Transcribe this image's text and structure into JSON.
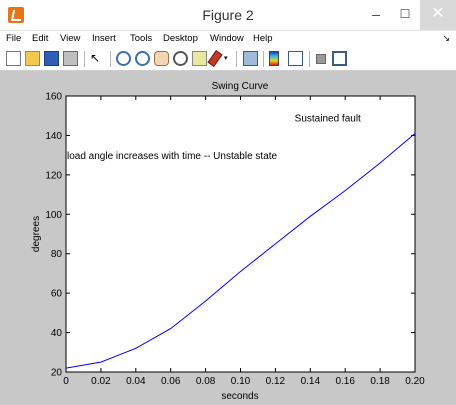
{
  "window": {
    "title": "Figure 2",
    "min_glyph": "–",
    "max_glyph": "☐",
    "close_glyph": "✕"
  },
  "menu": {
    "items": [
      "File",
      "Edit",
      "View",
      "Insert",
      "Tools",
      "Desktop",
      "Window",
      "Help"
    ],
    "pin_glyph": "↘"
  },
  "toolbar": {
    "icons": [
      "new-figure-icon",
      "open-file-icon",
      "save-icon",
      "print-icon",
      "edit-plot-arrow-icon",
      "zoom-in-icon",
      "zoom-out-icon",
      "pan-hand-icon",
      "rotate-3d-icon",
      "data-cursor-icon",
      "brush-icon",
      "brush-dropdown-icon",
      "link-plot-icon",
      "insert-colorbar-icon",
      "insert-legend-icon",
      "hide-plot-tools-icon",
      "show-plot-tools-icon"
    ]
  },
  "chart_data": {
    "type": "line",
    "title": "Swing Curve",
    "xlabel": "seconds",
    "ylabel": "degrees",
    "xlim": [
      0,
      0.2
    ],
    "ylim": [
      20,
      160
    ],
    "xticks": [
      "0",
      "0.02",
      "0.04",
      "0.06",
      "0.08",
      "0.10",
      "0.12",
      "0.14",
      "0.16",
      "0.18",
      "0.20"
    ],
    "yticks": [
      "20",
      "40",
      "60",
      "80",
      "100",
      "120",
      "140",
      "160"
    ],
    "grid": false,
    "line_color": "#0000ff",
    "series": [
      {
        "x": [
          0,
          0.02,
          0.04,
          0.06,
          0.08,
          0.1,
          0.12,
          0.14,
          0.16,
          0.18,
          0.2
        ],
        "values": [
          22,
          25,
          32,
          42,
          56,
          71,
          85,
          99,
          112,
          126,
          141
        ]
      }
    ],
    "annotations": [
      {
        "text": "Sustained fault",
        "x": 0.15,
        "y": 147
      },
      {
        "text": "load angle increases with time -- Unstable state",
        "x": 0,
        "y": 128
      }
    ]
  }
}
